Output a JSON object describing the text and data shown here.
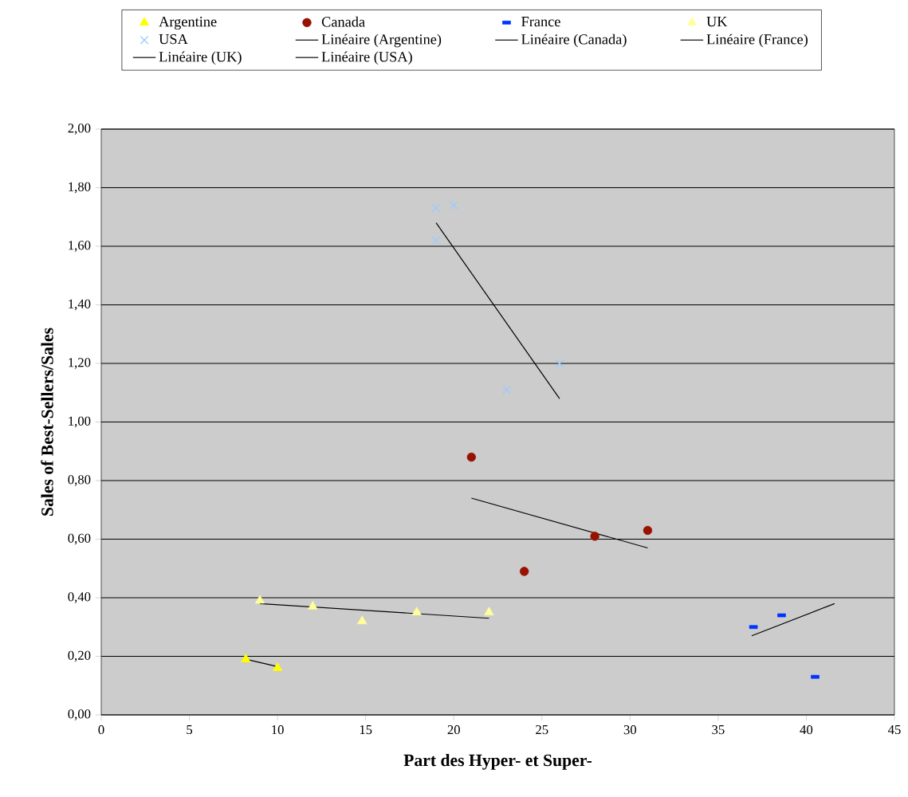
{
  "chart_data": {
    "type": "scatter",
    "xlabel": "Part des Hyper- et Super-",
    "ylabel": "Sales of Best-Sellers/Sales",
    "xlim": [
      0,
      45
    ],
    "xticks": [
      0,
      5,
      10,
      15,
      20,
      25,
      30,
      35,
      40,
      45
    ],
    "ylim": [
      0,
      2
    ],
    "yticks": [
      {
        "value": 0,
        "label": "0,00"
      },
      {
        "value": 0.2,
        "label": "0,20"
      },
      {
        "value": 0.4,
        "label": "0,40"
      },
      {
        "value": 0.6,
        "label": "0,60"
      },
      {
        "value": 0.8,
        "label": "0,80"
      },
      {
        "value": 1.0,
        "label": "1,00"
      },
      {
        "value": 1.2,
        "label": "1,20"
      },
      {
        "value": 1.4,
        "label": "1,40"
      },
      {
        "value": 1.6,
        "label": "1,60"
      },
      {
        "value": 1.8,
        "label": "1,80"
      },
      {
        "value": 2.0,
        "label": "2,00"
      }
    ],
    "grid": "y",
    "legend": "top",
    "series": [
      {
        "name": "Argentine",
        "marker": "triangle",
        "color": "#ffff00",
        "x": [
          8.2,
          10
        ],
        "values": [
          0.19,
          0.16
        ]
      },
      {
        "name": "Canada",
        "marker": "circle",
        "color": "#991100",
        "x": [
          21,
          24,
          28,
          31
        ],
        "values": [
          0.88,
          0.49,
          0.61,
          0.63
        ]
      },
      {
        "name": "France",
        "marker": "square",
        "color": "#0033ff",
        "x": [
          37,
          38.6,
          40.5
        ],
        "values": [
          0.3,
          0.34,
          0.13
        ]
      },
      {
        "name": "UK",
        "marker": "triangle",
        "color": "#ffff99",
        "x": [
          9,
          12,
          14.8,
          17.9,
          22
        ],
        "values": [
          0.39,
          0.37,
          0.32,
          0.35,
          0.35
        ]
      },
      {
        "name": "USA",
        "marker": "cross",
        "color": "#99ccff",
        "x": [
          19,
          20,
          19,
          26,
          23
        ],
        "values": [
          1.73,
          1.74,
          1.62,
          1.2,
          1.11
        ]
      },
      {
        "name": "Linéaire (Argentine)",
        "type": "line",
        "marker": "none",
        "line_style": "solid",
        "color": "#000000",
        "x": [
          8.2,
          10
        ],
        "values": [
          0.19,
          0.165
        ]
      },
      {
        "name": "Linéaire (Canada)",
        "type": "line",
        "marker": "none",
        "line_style": "solid",
        "color": "#000000",
        "x": [
          21,
          31
        ],
        "values": [
          0.74,
          0.57
        ]
      },
      {
        "name": "Linéaire (France)",
        "type": "line",
        "marker": "none",
        "line_style": "solid",
        "color": "#000000",
        "x": [
          36.9,
          41.6
        ],
        "values": [
          0.27,
          0.38
        ]
      },
      {
        "name": "Linéaire (UK)",
        "type": "line",
        "marker": "none",
        "line_style": "solid",
        "color": "#000000",
        "x": [
          9,
          22
        ],
        "values": [
          0.38,
          0.33
        ]
      },
      {
        "name": "Linéaire (USA)",
        "type": "line",
        "marker": "none",
        "line_style": "solid",
        "color": "#000000",
        "x": [
          19,
          26
        ],
        "values": [
          1.68,
          1.08
        ]
      }
    ]
  }
}
